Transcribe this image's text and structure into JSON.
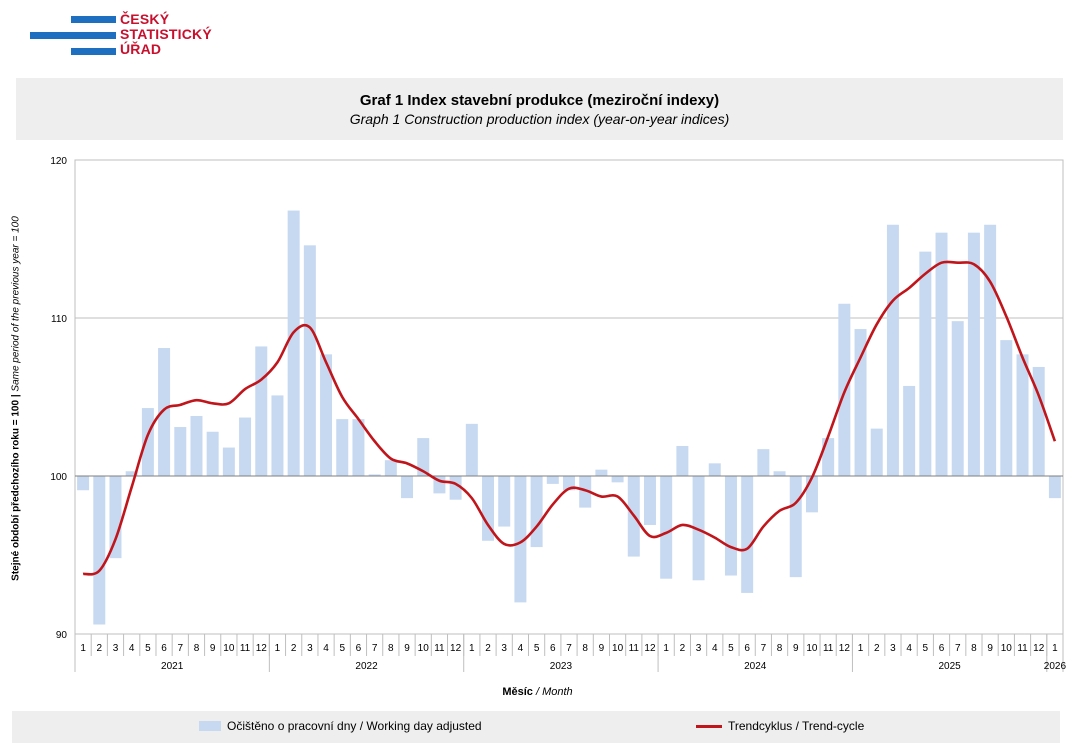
{
  "logo": {
    "line1": "ČESKÝ",
    "line2": "STATISTICKÝ",
    "line3": "ÚŘAD",
    "bar_color": "#1f6fc1",
    "text_color": "#c8102e"
  },
  "colors": {
    "bar": "#c6d9f1",
    "line": "#c0151b",
    "grid": "#bfbfbf"
  },
  "chart_data": {
    "type": "bar",
    "title": "Graf 1 Index stavební produkce (meziroční indexy)",
    "subtitle": "Graph 1 Construction production index (year-on-year indices)",
    "ylabel_bold": "Stejné období předchozího roku = 100 |",
    "ylabel_italic": " Same period of the previous year = 100",
    "xlabel_bold": "Měsíc",
    "xlabel_italic": " / Month",
    "ylim": [
      90,
      120
    ],
    "baseline": 100,
    "yticks": [
      90,
      100,
      110,
      120
    ],
    "years": [
      {
        "label": "2021",
        "months": 12
      },
      {
        "label": "2022",
        "months": 12
      },
      {
        "label": "2023",
        "months": 12
      },
      {
        "label": "2024",
        "months": 12
      },
      {
        "label": "2025",
        "months": 12
      },
      {
        "label": "2026",
        "months": 1
      }
    ],
    "month_labels": [
      "1",
      "2",
      "3",
      "4",
      "5",
      "6",
      "7",
      "8",
      "9",
      "10",
      "11",
      "12",
      "1",
      "2",
      "3",
      "4",
      "5",
      "6",
      "7",
      "8",
      "9",
      "10",
      "11",
      "12",
      "1",
      "2",
      "3",
      "4",
      "5",
      "6",
      "7",
      "8",
      "9",
      "10",
      "11",
      "12",
      "1",
      "2",
      "3",
      "4",
      "5",
      "6",
      "7",
      "8",
      "9",
      "10",
      "11",
      "12",
      "1",
      "2",
      "3",
      "4",
      "5",
      "6",
      "7",
      "8",
      "9",
      "10",
      "11",
      "12",
      "1"
    ],
    "series": [
      {
        "name": "Očištěno o pracovní dny / Working day adjusted",
        "type": "bar",
        "values": [
          99.1,
          90.6,
          94.8,
          100.3,
          104.3,
          108.1,
          103.1,
          103.8,
          102.8,
          101.8,
          103.7,
          108.2,
          105.1,
          116.8,
          114.6,
          107.7,
          103.6,
          103.6,
          100.1,
          101.0,
          98.6,
          102.4,
          98.9,
          98.5,
          103.3,
          95.9,
          96.8,
          92.0,
          95.5,
          99.5,
          99.1,
          98.0,
          100.4,
          99.6,
          94.9,
          96.9,
          93.5,
          101.9,
          93.4,
          100.8,
          93.7,
          92.6,
          101.7,
          100.3,
          93.6,
          97.7,
          102.4,
          110.9,
          109.3,
          103.0,
          115.9,
          105.7,
          114.2,
          115.4,
          109.8,
          115.4,
          115.9,
          108.6,
          107.7,
          106.9,
          98.6
        ]
      },
      {
        "name": "Trendcyklus / Trend-cycle",
        "type": "line",
        "values": [
          93.8,
          94.0,
          96.0,
          99.3,
          102.6,
          104.2,
          104.5,
          104.8,
          104.6,
          104.6,
          105.5,
          106.1,
          107.2,
          109.1,
          109.4,
          107.2,
          105.0,
          103.6,
          102.2,
          101.1,
          100.8,
          100.3,
          99.7,
          99.5,
          98.6,
          96.9,
          95.7,
          95.8,
          96.8,
          98.2,
          99.2,
          99.1,
          98.7,
          98.7,
          97.5,
          96.2,
          96.4,
          96.9,
          96.6,
          96.1,
          95.5,
          95.4,
          96.8,
          97.8,
          98.3,
          99.9,
          102.5,
          105.3,
          107.5,
          109.6,
          111.1,
          111.9,
          112.8,
          113.5,
          113.5,
          113.4,
          112.3,
          110.1,
          107.5,
          105.1,
          102.2
        ]
      }
    ]
  }
}
